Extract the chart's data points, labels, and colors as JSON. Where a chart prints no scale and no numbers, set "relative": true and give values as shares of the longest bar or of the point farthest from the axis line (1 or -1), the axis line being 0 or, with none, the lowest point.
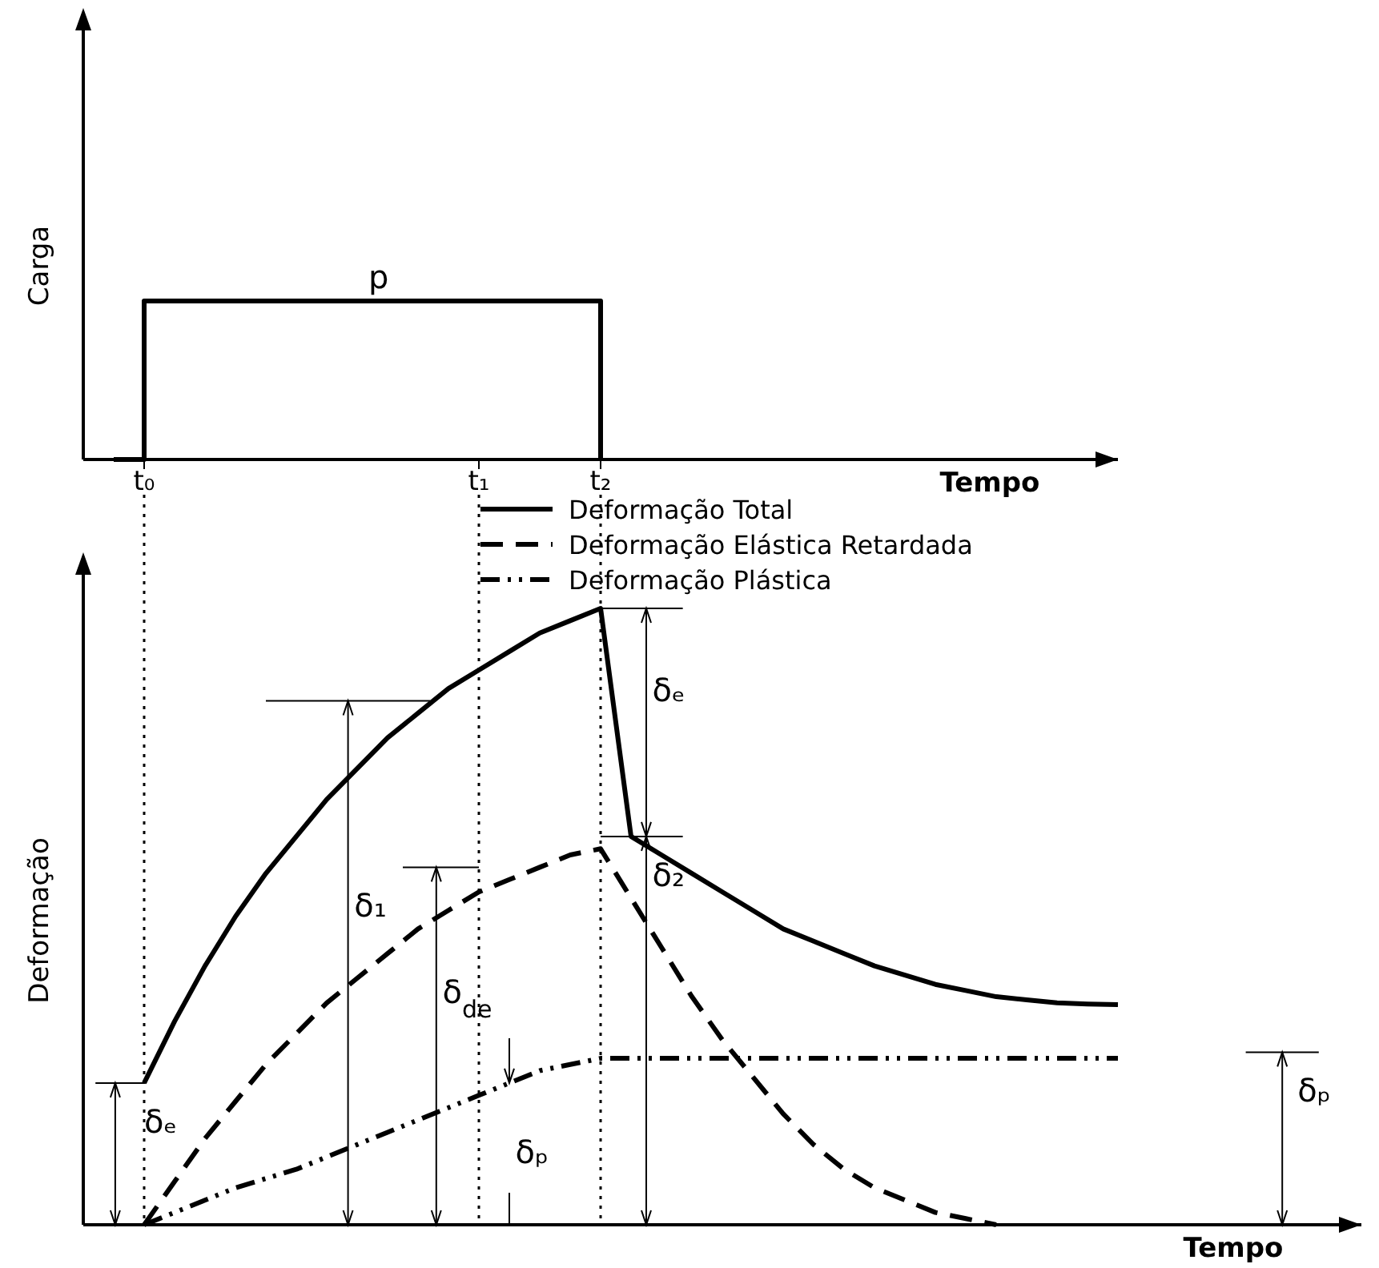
{
  "chart_data": [
    {
      "type": "step",
      "relative": true,
      "ylabel": "Carga",
      "xlabel": "Tempo",
      "categories": [
        null,
        null,
        "t₀",
        null,
        null,
        null,
        null,
        null,
        null,
        null,
        null,
        null,
        null,
        "t₁",
        null,
        null,
        null,
        "t₂",
        null,
        null,
        null,
        null,
        null,
        null,
        null,
        null,
        null,
        null,
        null,
        null,
        null,
        null,
        null,
        null,
        null
      ],
      "marker": "none",
      "line_style": "solid",
      "legend": false,
      "series": [
        {
          "color": "#000000",
          "values": [
            null,
            0,
            1,
            1,
            1,
            1,
            1,
            1,
            1,
            1,
            1,
            1,
            1,
            1,
            1,
            1,
            1,
            0,
            null,
            null,
            null,
            null,
            null,
            null,
            null,
            null,
            null,
            null,
            null,
            null,
            null,
            null,
            null,
            null,
            null
          ]
        }
      ],
      "annotations": [
        "p"
      ]
    },
    {
      "type": "line",
      "relative": true,
      "ylabel": "Deformação",
      "xlabel": "Tempo",
      "categories": [
        null,
        null,
        null,
        null,
        null,
        null,
        null,
        null,
        null,
        null,
        null,
        null,
        null,
        null,
        null,
        null,
        null,
        null,
        null,
        null,
        null,
        null,
        null,
        null,
        null,
        null,
        null,
        null,
        null,
        null,
        null,
        null,
        null,
        null,
        null,
        null,
        null,
        null,
        null,
        null,
        null,
        null,
        null
      ],
      "marker": "none",
      "legend": "top right",
      "series": [
        {
          "name": "Deformação Total",
          "color": "#000000",
          "line_style": "solid",
          "values": [
            null,
            null,
            0.23,
            0.33,
            0.42,
            0.5,
            0.57,
            0.63,
            0.69,
            0.74,
            0.79,
            0.83,
            0.87,
            0.9,
            0.93,
            0.96,
            0.98,
            1,
            0.63,
            0.6,
            0.57,
            0.54,
            0.51,
            0.48,
            0.46,
            0.44,
            0.42,
            0.405,
            0.39,
            0.38,
            0.37,
            0.365,
            0.36,
            0.358,
            0.357,
            null,
            null,
            null,
            null,
            null,
            null,
            null,
            null
          ]
        },
        {
          "name": "Deformação Elástica Retardada",
          "color": "#000000",
          "line_style": "dashed",
          "values": [
            null,
            null,
            0,
            0.07,
            0.14,
            0.2,
            0.26,
            0.31,
            0.36,
            0.4,
            0.44,
            0.48,
            0.51,
            0.54,
            0.56,
            0.58,
            0.6,
            0.61,
            0.53,
            0.45,
            0.37,
            0.3,
            0.24,
            0.18,
            0.13,
            0.09,
            0.06,
            0.04,
            0.02,
            0.01,
            0,
            null,
            null,
            null,
            null,
            null,
            null,
            null,
            null,
            null,
            null,
            null,
            null
          ]
        },
        {
          "name": "Deformação Plástica",
          "color": "#000000",
          "line_style": "dashdot",
          "values": [
            null,
            null,
            0,
            0.02,
            0.04,
            0.06,
            0.075,
            0.09,
            0.11,
            0.13,
            0.15,
            0.17,
            0.19,
            0.21,
            0.23,
            0.25,
            0.26,
            0.27,
            0.27,
            0.27,
            0.27,
            0.27,
            0.27,
            0.27,
            0.27,
            0.27,
            0.27,
            0.27,
            0.27,
            0.27,
            0.27,
            0.27,
            0.27,
            0.27,
            0.27,
            null,
            null,
            null,
            null,
            null,
            null,
            null,
            null
          ]
        }
      ],
      "annotations": [
        "δₑ",
        "δ₁",
        "δ$_{de}$",
        "δₚ",
        "δₑ",
        "δ₂",
        "δₚ"
      ]
    }
  ]
}
